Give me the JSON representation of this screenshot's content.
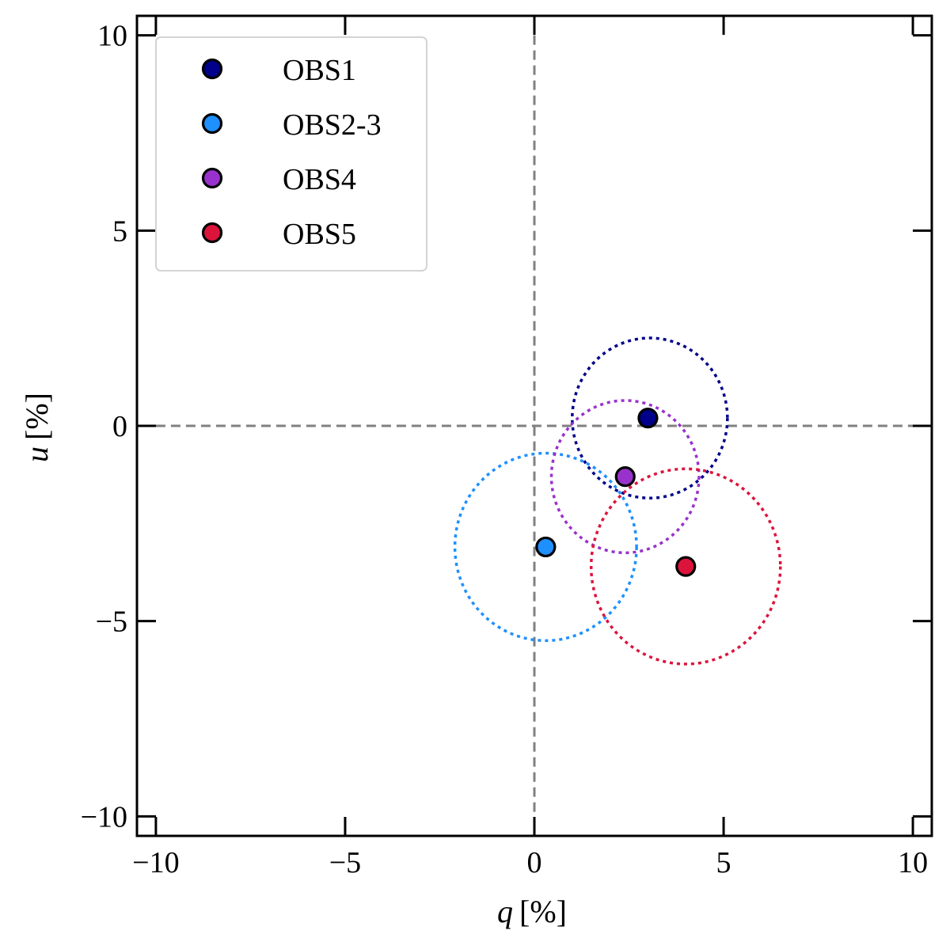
{
  "chart_data": {
    "type": "scatter",
    "title": "",
    "xlabel": {
      "symbol": "q",
      "unit": "[%]"
    },
    "ylabel": {
      "symbol": "u",
      "unit": "[%]"
    },
    "xlim": [
      -10.5,
      10.5
    ],
    "ylim": [
      -10.5,
      10.5
    ],
    "xticks": [
      -10,
      -5,
      0,
      5,
      10
    ],
    "yticks": [
      -10,
      -5,
      0,
      5,
      10
    ],
    "xtick_labels": [
      "−10",
      "−5",
      "0",
      "5",
      "10"
    ],
    "ytick_labels": [
      "−10",
      "−5",
      "0",
      "5",
      "10"
    ],
    "grid": false,
    "reference_lines": {
      "x": 0,
      "y": 0,
      "style": "dashed"
    },
    "legend_position": "top-left",
    "series": [
      {
        "name": "OBS1",
        "color": "#00008B",
        "q": 3.0,
        "u": 0.2,
        "circle_center": [
          3.05,
          0.2
        ],
        "circle_radius": 2.05
      },
      {
        "name": "OBS2-3",
        "color": "#1E90FF",
        "q": 0.3,
        "u": -3.1,
        "circle_center": [
          0.3,
          -3.1
        ],
        "circle_radius": 2.4
      },
      {
        "name": "OBS4",
        "color": "#9932CC",
        "q": 2.4,
        "u": -1.3,
        "circle_center": [
          2.4,
          -1.3
        ],
        "circle_radius": 1.95
      },
      {
        "name": "OBS5",
        "color": "#DC143C",
        "q": 4.0,
        "u": -3.6,
        "circle_center": [
          4.0,
          -3.6
        ],
        "circle_radius": 2.5
      }
    ],
    "reference_line_color": "#808080"
  }
}
